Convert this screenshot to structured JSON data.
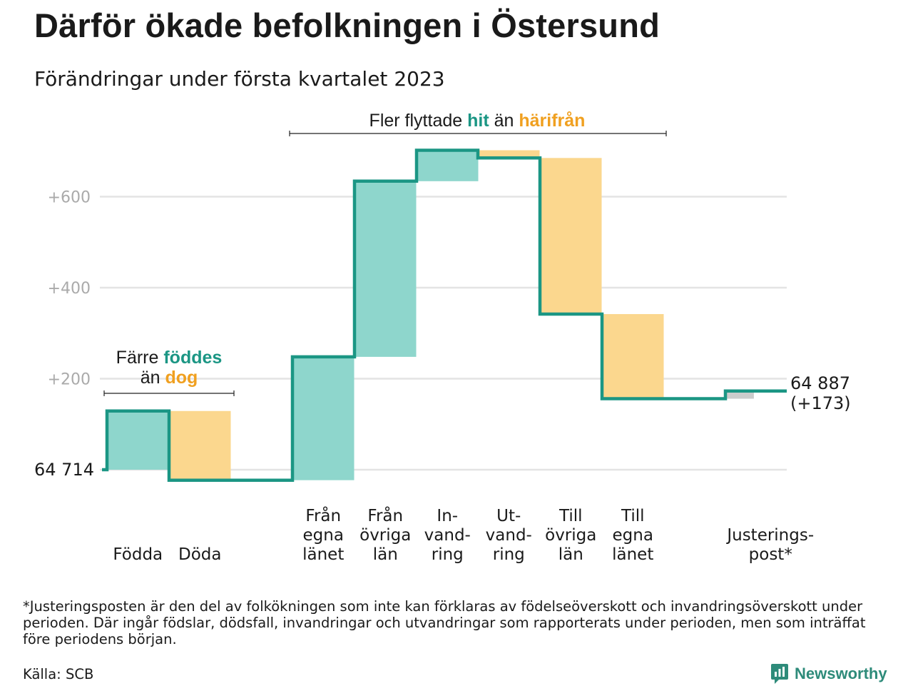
{
  "title": "Därför ökade befolkningen i Östersund",
  "subtitle": "Förändringar under första kvartalet 2023",
  "footnote": "*Justeringsposten är den del av folkökningen som inte kan förklaras av födelseöverskott och invandringsöverskott under perioden. Där ingår födslar, dödsfall, invandringar och utvandringar som rapporterats under perioden, men som inträffat före periodens början.",
  "source": "Källa: SCB",
  "brand": "Newsworthy",
  "colors": {
    "increase": "#8ed6cc",
    "decrease": "#fbd78e",
    "adjustment": "#cccccc",
    "line": "#1b9684",
    "teal_text": "#1b9684",
    "orange_text": "#f0a020",
    "grid": "#e4e4e4",
    "tick": "#aaaaaa"
  },
  "chart_data": {
    "type": "waterfall",
    "start_label": "64 714",
    "end_label": [
      "64 887",
      "(+173)"
    ],
    "y_ticks": [
      {
        "value": 200,
        "label": "+200"
      },
      {
        "value": 400,
        "label": "+400"
      },
      {
        "value": 600,
        "label": "+600"
      }
    ],
    "ylim": [
      -40,
      690
    ],
    "steps": [
      {
        "label": [
          "Födda"
        ],
        "value": 129,
        "kind": "increase"
      },
      {
        "label": [
          "Döda"
        ],
        "value": -152,
        "kind": "decrease"
      },
      {
        "label": [
          "Från",
          "egna",
          "länet"
        ],
        "value": 271,
        "kind": "increase"
      },
      {
        "label": [
          "Från",
          "övriga",
          "län"
        ],
        "value": 386,
        "kind": "increase"
      },
      {
        "label": [
          "In-",
          "vand-",
          "ring"
        ],
        "value": 68,
        "kind": "increase"
      },
      {
        "label": [
          "Ut-",
          "vand-",
          "ring"
        ],
        "value": -17,
        "kind": "decrease"
      },
      {
        "label": [
          "Till",
          "övriga",
          "län"
        ],
        "value": -343,
        "kind": "decrease"
      },
      {
        "label": [
          "Till",
          "egna",
          "länet"
        ],
        "value": -186,
        "kind": "decrease"
      },
      {
        "label": [
          "Justerings-",
          "post*"
        ],
        "value": 17,
        "kind": "adjustment"
      }
    ],
    "annotations": [
      {
        "parts": [
          [
            "Färre ",
            "normal"
          ],
          [
            "föddes",
            "teal"
          ]
        ],
        "parts2": [
          [
            "än ",
            "normal"
          ],
          [
            "dog",
            "orange"
          ]
        ]
      },
      {
        "parts": [
          [
            "Fler flyttade ",
            "normal"
          ],
          [
            "hit",
            "teal"
          ],
          [
            " än ",
            "normal"
          ],
          [
            "härifrån",
            "orange"
          ]
        ]
      }
    ]
  }
}
